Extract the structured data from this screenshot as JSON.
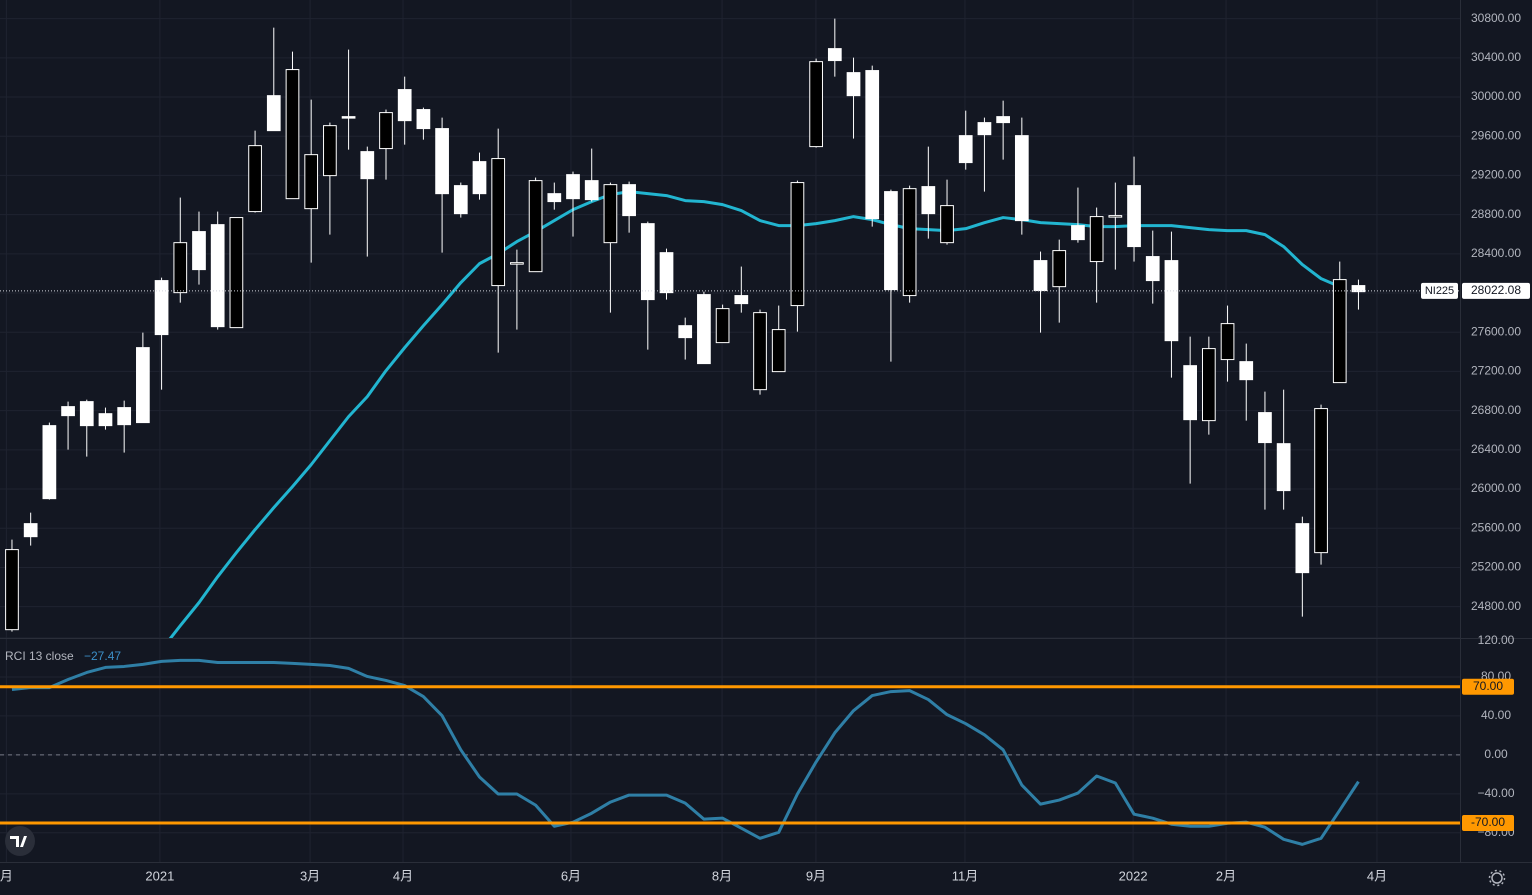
{
  "chart_data": [
    {
      "type": "candlestick",
      "x": [
        0,
        1,
        2,
        3,
        4,
        5,
        6,
        7,
        8,
        9,
        10,
        11,
        12,
        13,
        14,
        15,
        16,
        17,
        18,
        19,
        20,
        21,
        22,
        23,
        24,
        25,
        26,
        27,
        28,
        29,
        30,
        31,
        32,
        33,
        34,
        35,
        36,
        37,
        38,
        39,
        40,
        41,
        42,
        43,
        44,
        45,
        46,
        47,
        48,
        49,
        50,
        51,
        52,
        53,
        54,
        55,
        56,
        57,
        58,
        59,
        60,
        61,
        62,
        63,
        64,
        65,
        66,
        67,
        68,
        69,
        70,
        71,
        72
      ],
      "open": [
        24565,
        25647,
        26647,
        26841,
        26892,
        26769,
        26831,
        27443,
        28127,
        28004,
        28627,
        28698,
        27647,
        28831,
        30014,
        28963,
        28861,
        29198,
        29800,
        29443,
        29474,
        30076,
        29872,
        29678,
        29096,
        29341,
        28076,
        28310,
        28218,
        29014,
        29208,
        29147,
        28514,
        29106,
        28708,
        28412,
        27667,
        27984,
        27494,
        27974,
        27014,
        27198,
        27872,
        29494,
        30494,
        30249,
        30270,
        29035,
        27974,
        29086,
        28514,
        29606,
        29739,
        29800,
        29606,
        28331,
        28065,
        28688,
        28321,
        28790,
        29096,
        28372,
        28331,
        27259,
        26698,
        27321,
        27300,
        26780,
        26463,
        25647,
        25351,
        27086,
        28076
      ],
      "high": [
        25484,
        25759,
        26678,
        26892,
        26912,
        26831,
        26902,
        27596,
        28157,
        28974,
        28831,
        28831,
        28770,
        29657,
        30708,
        30463,
        29974,
        29739,
        30484,
        29494,
        29872,
        30208,
        29892,
        29790,
        29127,
        29433,
        29678,
        28443,
        29178,
        29127,
        29239,
        29474,
        29127,
        29137,
        28729,
        28453,
        27749,
        28014,
        27882,
        28270,
        27831,
        27872,
        29147,
        30392,
        30800,
        30402,
        30321,
        29055,
        29096,
        29494,
        29157,
        29861,
        29790,
        29963,
        29790,
        28423,
        28545,
        29076,
        28872,
        29127,
        29392,
        28637,
        28627,
        27555,
        27555,
        27872,
        27484,
        26994,
        27014,
        25718,
        26861,
        28321,
        28137
      ],
      "low": [
        24545,
        25423,
        25892,
        26402,
        26331,
        26606,
        26372,
        26678,
        27014,
        27902,
        28086,
        27627,
        27647,
        28821,
        29657,
        28963,
        28310,
        28596,
        29463,
        28372,
        29157,
        29514,
        29565,
        28412,
        28770,
        28953,
        27392,
        27627,
        28218,
        28851,
        28576,
        28933,
        27800,
        28616,
        27423,
        27933,
        27321,
        27280,
        27494,
        27800,
        26963,
        27198,
        27606,
        29484,
        30208,
        29576,
        28678,
        27300,
        27902,
        28555,
        28494,
        29259,
        29035,
        29361,
        28596,
        27596,
        27698,
        28514,
        27902,
        28239,
        28321,
        27892,
        27137,
        26055,
        26555,
        27096,
        26698,
        25790,
        25790,
        24698,
        25229,
        27086,
        27831
      ],
      "close": [
        25382,
        25514,
        25902,
        26749,
        26647,
        26647,
        26657,
        26678,
        27576,
        28514,
        28239,
        27657,
        28770,
        29504,
        29657,
        30280,
        29412,
        29708,
        29790,
        29167,
        29841,
        29759,
        29678,
        29014,
        28810,
        29014,
        29372,
        28310,
        29147,
        28933,
        28963,
        28953,
        29106,
        28790,
        27933,
        28004,
        27545,
        27280,
        27841,
        27892,
        27800,
        27627,
        29127,
        30361,
        30372,
        30014,
        28759,
        28035,
        29065,
        28810,
        28892,
        29331,
        29616,
        29739,
        28739,
        28025,
        28433,
        28545,
        28780,
        28790,
        28474,
        28127,
        27514,
        26708,
        27433,
        27688,
        27116,
        26474,
        25984,
        25147,
        26821,
        28137,
        28014
      ],
      "up_color": "#000000",
      "down_color": "#ffffff",
      "wick_color": "#ffffff",
      "overlay": {
        "type": "line",
        "color": "#22b5d0",
        "values": [
          null,
          null,
          null,
          null,
          null,
          null,
          null,
          null,
          24361,
          24606,
          24841,
          25106,
          25351,
          25586,
          25810,
          26025,
          26249,
          26494,
          26739,
          26943,
          27208,
          27443,
          27667,
          27882,
          28106,
          28300,
          28402,
          28525,
          28627,
          28739,
          28851,
          28933,
          29004,
          29035,
          29014,
          28994,
          28943,
          28933,
          28902,
          28841,
          28739,
          28688,
          28688,
          28708,
          28739,
          28780,
          28749,
          28698,
          28657,
          28647,
          28637,
          28657,
          28718,
          28770,
          28749,
          28718,
          28708,
          28698,
          28678,
          28678,
          28688,
          28688,
          28688,
          28667,
          28647,
          28637,
          28637,
          28596,
          28474,
          28290,
          28147,
          28065,
          null
        ]
      },
      "last_price": {
        "value": 28022.08,
        "symbol": "NI225"
      },
      "xlim": [
        -0.64,
        77.43
      ],
      "ylim": [
        24480,
        30990
      ],
      "yticks": [
        {
          "value": 24800,
          "label": "24800.00"
        },
        {
          "value": 25200,
          "label": "25200.00"
        },
        {
          "value": 25600,
          "label": "25600.00"
        },
        {
          "value": 26000,
          "label": "26000.00"
        },
        {
          "value": 26400,
          "label": "26400.00"
        },
        {
          "value": 26800,
          "label": "26800.00"
        },
        {
          "value": 27200,
          "label": "27200.00"
        },
        {
          "value": 27600,
          "label": "27600.00"
        },
        {
          "value": 28000,
          "label": "28000.00"
        },
        {
          "value": 28400,
          "label": "28400.00"
        },
        {
          "value": 28800,
          "label": "28800.00"
        },
        {
          "value": 29200,
          "label": "29200.00"
        },
        {
          "value": 29600,
          "label": "29600.00"
        },
        {
          "value": 30000,
          "label": "30000.00"
        },
        {
          "value": 30400,
          "label": "30400.00"
        },
        {
          "value": 30800,
          "label": "30800.00"
        }
      ],
      "grid": true
    },
    {
      "type": "line",
      "x": [
        0,
        1,
        2,
        3,
        4,
        5,
        6,
        7,
        8,
        9,
        10,
        11,
        12,
        13,
        14,
        15,
        16,
        17,
        18,
        19,
        20,
        21,
        22,
        23,
        24,
        25,
        26,
        27,
        28,
        29,
        30,
        31,
        32,
        33,
        34,
        35,
        36,
        37,
        38,
        39,
        40,
        41,
        42,
        43,
        44,
        45,
        46,
        47,
        48,
        49,
        50,
        51,
        52,
        53,
        54,
        55,
        56,
        57,
        58,
        59,
        60,
        61,
        62,
        63,
        64,
        65,
        66,
        67,
        68,
        69,
        70,
        71,
        72
      ],
      "series": [
        {
          "name": "RCI 13 close",
          "color": "#2f7fa6",
          "values": [
            67.1,
            69.1,
            69.1,
            77.4,
            84.6,
            89.8,
            90.8,
            92.9,
            96.0,
            97.0,
            97.0,
            94.9,
            94.9,
            94.9,
            94.9,
            93.9,
            92.9,
            91.8,
            88.8,
            80.5,
            76.4,
            71.2,
            59.9,
            40.2,
            5.2,
            -22.7,
            -40.2,
            -40.2,
            -51.6,
            -73.3,
            -69.1,
            -59.9,
            -48.5,
            -41.3,
            -41.3,
            -41.3,
            -49.5,
            -66.0,
            -65.0,
            -75.3,
            -85.7,
            -79.5,
            -40.2,
            -7.2,
            22.7,
            45.4,
            60.9,
            65.0,
            66.0,
            56.8,
            41.3,
            32.0,
            20.6,
            5.2,
            -31.0,
            -50.6,
            -46.4,
            -39.2,
            -21.7,
            -28.9,
            -60.9,
            -65.0,
            -71.2,
            -73.3,
            -73.3,
            -70.2,
            -69.1,
            -74.3,
            -86.7,
            -91.9,
            -85.7,
            -56.8,
            -27.47
          ]
        }
      ],
      "last_value": {
        "value": -27.47,
        "label": "−27.47"
      },
      "bands": [
        {
          "value": 70,
          "label": "70.00",
          "color": "#ff9800"
        },
        {
          "value": -70,
          "label": "-70.00",
          "color": "#ff9800"
        }
      ],
      "zero_line": 0,
      "xlim": [
        -0.64,
        77.43
      ],
      "xticks": [
        {
          "value": -0.3,
          "label": "月"
        },
        {
          "value": 7.91,
          "label": "2021"
        },
        {
          "value": 15.94,
          "label": "3月"
        },
        {
          "value": 20.91,
          "label": "4月"
        },
        {
          "value": 29.89,
          "label": "6月"
        },
        {
          "value": 37.97,
          "label": "8月"
        },
        {
          "value": 42.99,
          "label": "9月"
        },
        {
          "value": 50.96,
          "label": "11月"
        },
        {
          "value": 59.95,
          "label": "2022"
        },
        {
          "value": 64.92,
          "label": "2月"
        },
        {
          "value": 72.99,
          "label": "4月"
        }
      ],
      "ylim": [
        -110,
        120
      ],
      "yticks": [
        {
          "value": 120,
          "label": "120.00"
        },
        {
          "value": 80,
          "label": "80.00"
        },
        {
          "value": 40,
          "label": "40.00"
        },
        {
          "value": 0,
          "label": "0.00"
        },
        {
          "value": -40,
          "label": "−40.00"
        },
        {
          "value": -80,
          "label": "−80.00"
        }
      ],
      "grid": true
    }
  ]
}
